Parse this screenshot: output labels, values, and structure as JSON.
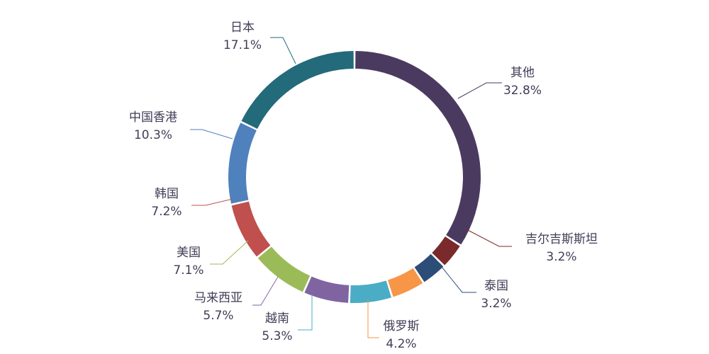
{
  "chart_data": {
    "type": "pie",
    "variant": "donut",
    "title": "",
    "legend": "none",
    "start_angle_deg": 0,
    "slices": [
      {
        "name": "其他",
        "value": 32.8,
        "label": "32.8%",
        "color": "#4b3a60"
      },
      {
        "name": "吉尔吉斯斯坦",
        "value": 3.2,
        "label": "3.2%",
        "color": "#61782f"
      },
      {
        "name": "泰国",
        "value": 3.2,
        "label": "3.2%",
        "color": "#7a2a2a"
      },
      {
        "name": "俄罗斯",
        "value": 4.2,
        "label": "4.2%",
        "color": "#2b4d78"
      },
      {
        "name": "越南",
        "value": 5.3,
        "label": "5.3%",
        "color": "#f79646"
      },
      {
        "name": "马来西亚",
        "value": 5.7,
        "label": "5.7%",
        "color": "#4bacc6"
      },
      {
        "name": "美国",
        "value": 7.1,
        "label": "7.1%",
        "color": "#8064a2"
      },
      {
        "name": "韩国",
        "value": 7.2,
        "label": "7.2%",
        "color": "#9bbb59"
      },
      {
        "name": "中国香港",
        "value": 10.3,
        "label": "10.3%",
        "color": "#c0504d"
      },
      {
        "name": "日本",
        "value": 17.1,
        "label": "17.1%",
        "color": "#4f81bd"
      }
    ]
  },
  "styles": {
    "inner_dark": "#236a7a",
    "text_color": "#3f3d56"
  }
}
